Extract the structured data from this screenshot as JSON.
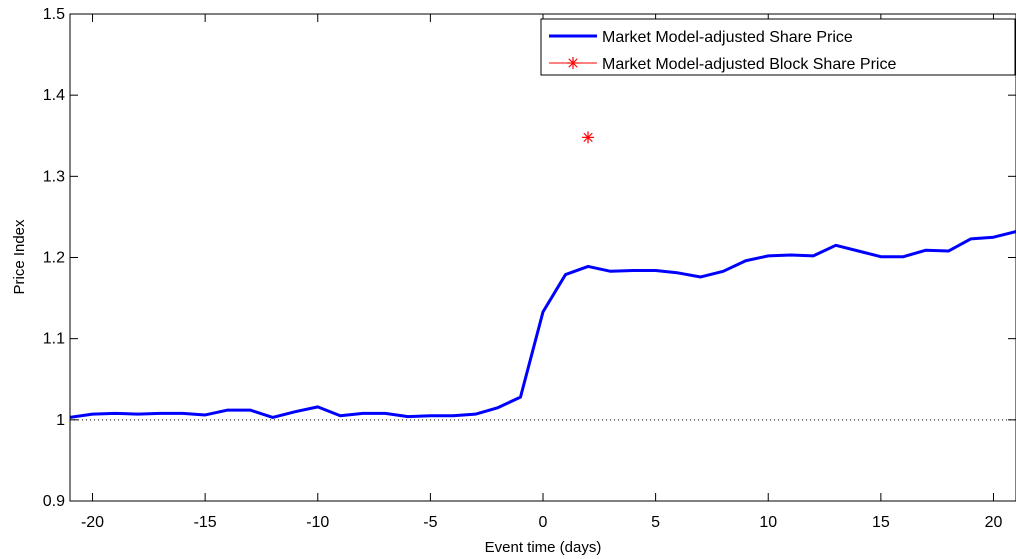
{
  "chart_data": {
    "type": "line",
    "title": "",
    "xlabel": "Event time (days)",
    "ylabel": "Price Index",
    "xlim": [
      -21,
      21
    ],
    "ylim": [
      0.9,
      1.5
    ],
    "xticks": [
      -20,
      -15,
      -10,
      -5,
      0,
      5,
      10,
      15,
      20
    ],
    "yticks": [
      0.9,
      1,
      1.1,
      1.2,
      1.3,
      1.4,
      1.5
    ],
    "ytick_labels": [
      "0.9",
      "1",
      "1.1",
      "1.2",
      "1.3",
      "1.4",
      "1.5"
    ],
    "grid": false,
    "legend_position": "top-right",
    "reference_line": {
      "y": 1,
      "style": "dotted",
      "color": "#000000"
    },
    "series": [
      {
        "name": "Market Model-adjusted Share Price",
        "color": "#0000ff",
        "marker": "none",
        "x": [
          -21,
          -20,
          -19,
          -18,
          -17,
          -16,
          -15,
          -14,
          -13,
          -12,
          -11,
          -10,
          -9,
          -8,
          -7,
          -6,
          -5,
          -4,
          -3,
          -2,
          -1,
          0,
          1,
          2,
          3,
          4,
          5,
          6,
          7,
          8,
          9,
          10,
          11,
          12,
          13,
          14,
          15,
          16,
          17,
          18,
          19,
          20,
          21
        ],
        "y": [
          1.003,
          1.007,
          1.008,
          1.007,
          1.008,
          1.008,
          1.006,
          1.012,
          1.012,
          1.003,
          1.01,
          1.016,
          1.005,
          1.008,
          1.008,
          1.004,
          1.005,
          1.005,
          1.007,
          1.015,
          1.028,
          1.133,
          1.179,
          1.189,
          1.183,
          1.184,
          1.184,
          1.181,
          1.176,
          1.183,
          1.196,
          1.202,
          1.203,
          1.202,
          1.215,
          1.208,
          1.201,
          1.201,
          1.209,
          1.208,
          1.223,
          1.225,
          1.232
        ]
      },
      {
        "name": "Market Model-adjusted Block Share Price",
        "color": "#ff0000",
        "marker": "asterisk",
        "x": [
          2
        ],
        "y": [
          1.348
        ]
      }
    ]
  }
}
